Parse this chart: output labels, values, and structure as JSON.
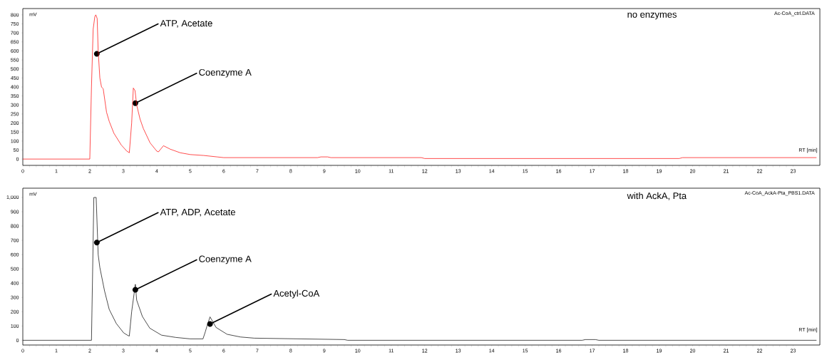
{
  "chart_data": [
    {
      "type": "line",
      "ylabel": "mV",
      "xlabel": "RT [min]",
      "xlim": [
        0,
        23.8
      ],
      "ylim": [
        -35,
        835
      ],
      "xticks": [
        0,
        1,
        2,
        3,
        4,
        5,
        6,
        7,
        8,
        9,
        10,
        11,
        12,
        13,
        14,
        15,
        16,
        17,
        18,
        19,
        20,
        21,
        22,
        23
      ],
      "yticks": [
        0,
        50,
        100,
        150,
        200,
        250,
        300,
        350,
        400,
        450,
        500,
        550,
        600,
        650,
        700,
        750,
        800
      ],
      "series": [
        {
          "color": "#ff0000",
          "x": [
            0,
            2.0,
            2.05,
            2.1,
            2.15,
            2.18,
            2.22,
            2.25,
            2.3,
            2.35,
            2.4,
            2.5,
            2.58,
            2.72,
            2.94,
            3.1,
            3.18,
            3.25,
            3.3,
            3.35,
            3.4,
            3.5,
            3.6,
            3.8,
            4.0,
            4.05,
            4.2,
            4.4,
            4.7,
            5.0,
            5.4,
            5.8,
            6.0,
            8.8,
            8.9,
            9.1,
            9.2,
            11.9,
            12.0,
            19.6,
            19.7,
            23.7
          ],
          "values": [
            0,
            0,
            400,
            720,
            790,
            800,
            780,
            600,
            450,
            400,
            390,
            260,
            209,
            143,
            78,
            45,
            35,
            200,
            394,
            380,
            300,
            222,
            169,
            90,
            44,
            40,
            74,
            55,
            35,
            25,
            20,
            12,
            8,
            8,
            12,
            12,
            8,
            8,
            3,
            3,
            8,
            8
          ]
        }
      ],
      "annotations": [
        {
          "text": "ATP, Acetate",
          "x": 2.21,
          "y": 584
        },
        {
          "text": "Coenzyme A",
          "x": 3.36,
          "y": 310
        },
        "no enzymes",
        "Ac-CoA_ctrl.DATA"
      ]
    },
    {
      "type": "line",
      "ylabel": "mV",
      "xlabel": "RT [min]",
      "xlim": [
        0,
        23.8
      ],
      "ylim": [
        -33,
        1065
      ],
      "xticks": [
        0,
        1,
        2,
        3,
        4,
        5,
        6,
        7,
        8,
        9,
        10,
        11,
        12,
        13,
        14,
        15,
        16,
        17,
        18,
        19,
        20,
        21,
        22,
        23
      ],
      "yticks": [
        0,
        100,
        200,
        300,
        400,
        500,
        600,
        700,
        800,
        900,
        {
          "value": 1000,
          "label": "1,000"
        }
      ],
      "series": [
        {
          "color": "#000000",
          "x": [
            0,
            2.0,
            2.05,
            2.1,
            2.12,
            2.19,
            2.22,
            2.25,
            2.3,
            2.44,
            2.58,
            2.79,
            3.01,
            3.15,
            3.18,
            3.25,
            3.36,
            3.4,
            3.57,
            3.79,
            4.14,
            4.57,
            5.0,
            5.38,
            5.45,
            5.5,
            5.59,
            5.77,
            6.1,
            6.5,
            6.91,
            9.6,
            9.7,
            16.7,
            16.8,
            17.1,
            17.2,
            23.7
          ],
          "values": [
            0,
            0,
            0,
            700,
            1000,
            1000,
            800,
            600,
            510,
            346,
            216,
            118,
            52,
            32,
            30,
            200,
            392,
            281,
            167,
            85,
            36,
            20,
            10,
            10,
            60,
            100,
            164,
            90,
            42,
            23,
            15,
            5,
            0,
            0,
            5,
            5,
            0,
            0
          ]
        }
      ],
      "annotations": [
        {
          "text": "ATP, ADP, Acetate",
          "x": 2.21,
          "y": 684
        },
        {
          "text": "Coenzyme A",
          "x": 3.36,
          "y": 354
        },
        {
          "text": "Acetyl-CoA",
          "x": 5.59,
          "y": 114
        },
        "with AckA, Pta",
        "Ac-CoA_AckA-Pta_PBS1.DATA"
      ]
    }
  ]
}
